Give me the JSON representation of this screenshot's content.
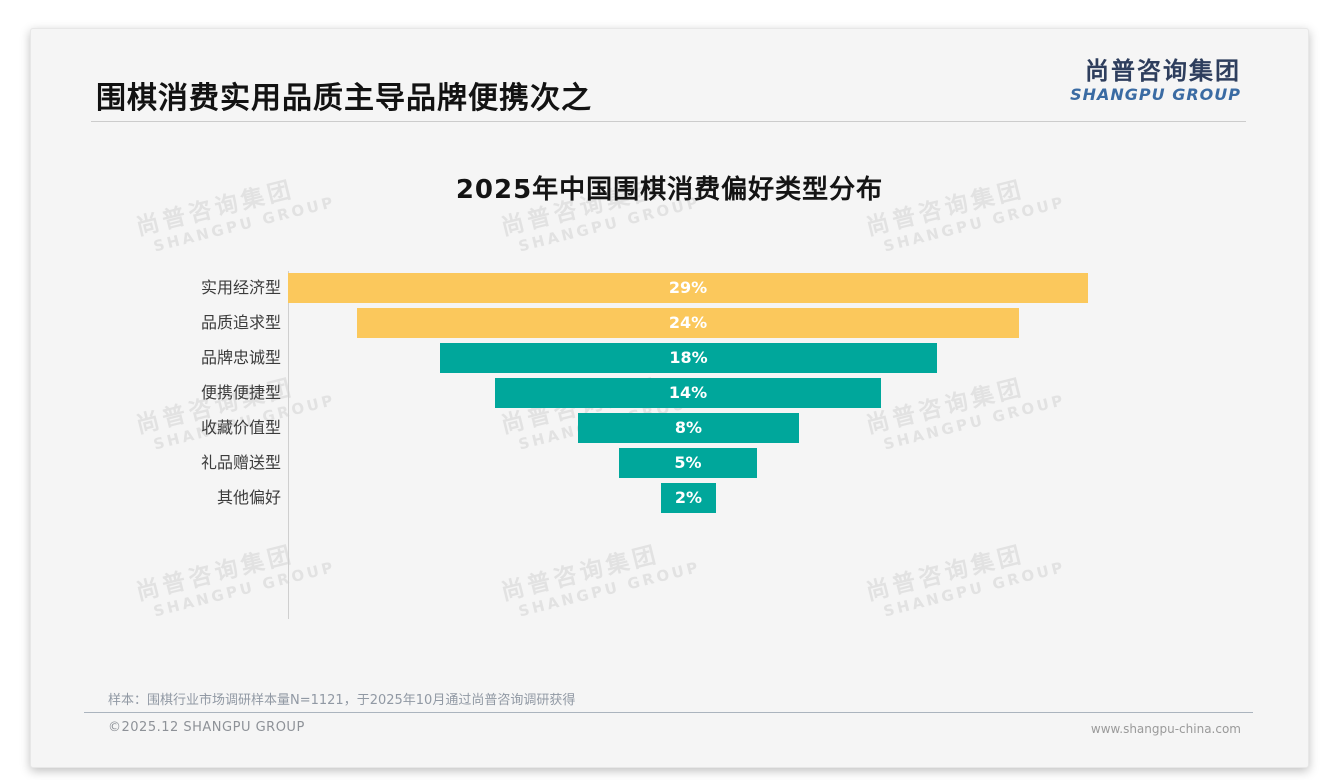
{
  "page": {
    "title": "围棋消费实用品质主导品牌便携次之",
    "logo": {
      "cn": "尚普咨询集团",
      "en": "SHANGPU GROUP"
    },
    "watermark": {
      "cn": "尚普咨询集团",
      "en": "SHANGPU GROUP"
    },
    "note": "样本：围棋行业市场调研样本量N=1121，于2025年10月通过尚普咨询调研获得",
    "footer": {
      "left": "©2025.12 SHANGPU GROUP",
      "right": "www.shangpu-china.com"
    }
  },
  "chart_data": {
    "type": "bar",
    "subtype": "horizontal-centered-funnel",
    "title": "2025年中国围棋消费偏好类型分布",
    "categories": [
      "实用经济型",
      "品质追求型",
      "品牌忠诚型",
      "便携便捷型",
      "收藏价值型",
      "礼品赠送型",
      "其他偏好"
    ],
    "values": [
      29,
      24,
      18,
      14,
      8,
      5,
      2
    ],
    "value_labels": [
      "29%",
      "24%",
      "18%",
      "14%",
      "8%",
      "5%",
      "2%"
    ],
    "unit": "%",
    "xlim": [
      0,
      29
    ],
    "bar_colors": [
      "#FBC85C",
      "#FBC85C",
      "#00A79B",
      "#00A79B",
      "#00A79B",
      "#00A79B",
      "#00A79B"
    ],
    "palette": {
      "yellow": "#FBC85C",
      "teal": "#00A79B"
    },
    "value_label_position": "inside-center",
    "value_label_color": "#ffffff",
    "grid": false,
    "legend": "none"
  }
}
